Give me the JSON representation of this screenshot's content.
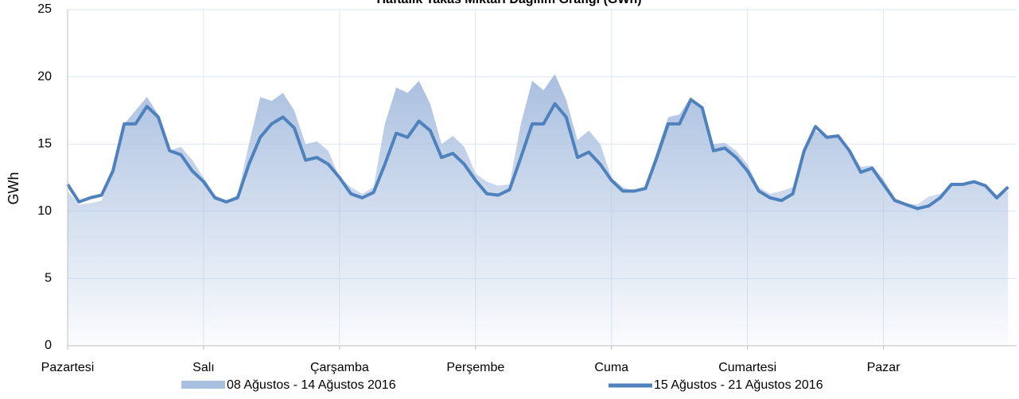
{
  "chart_data": {
    "type": "area_line",
    "title": "Haftalık Takas Miktarı Dağılım Grafiği (GWh)",
    "y_label": "GWh",
    "x": [
      0,
      2,
      4,
      6,
      8,
      10,
      12,
      14,
      16,
      18,
      20,
      22,
      24,
      26,
      28,
      30,
      32,
      34,
      36,
      38,
      40,
      42,
      44,
      46,
      48,
      50,
      52,
      54,
      56,
      58,
      60,
      62,
      64,
      66,
      68,
      70,
      72,
      74,
      76,
      78,
      80,
      82,
      84,
      86,
      88,
      90,
      92,
      94,
      96,
      98,
      100,
      102,
      104,
      106,
      108,
      110,
      112,
      114,
      116,
      118,
      120,
      122,
      124,
      126,
      128,
      130,
      132,
      134,
      136,
      138,
      140,
      142,
      144,
      146,
      148,
      150,
      152,
      154,
      156,
      158,
      160,
      162,
      164,
      166
    ],
    "xlim": [
      0,
      167.5
    ],
    "xticks": [
      {
        "value": 0,
        "label": "Pazartesi"
      },
      {
        "value": 24,
        "label": "Salı"
      },
      {
        "value": 48,
        "label": "Çarşamba"
      },
      {
        "value": 72,
        "label": "Perşembe"
      },
      {
        "value": 96,
        "label": "Cuma"
      },
      {
        "value": 120,
        "label": "Cumartesi"
      },
      {
        "value": 144,
        "label": "Pazar"
      }
    ],
    "ylim": [
      0,
      25
    ],
    "yticks": [
      0,
      5,
      10,
      15,
      20,
      25
    ],
    "grid": true,
    "series": [
      {
        "name": "08 Ağustos - 14 Ağustos 2016",
        "kind": "area",
        "color": "#a9bfdf",
        "values": [
          11.5,
          10.5,
          10.6,
          10.8,
          13,
          16.5,
          17.5,
          18.5,
          17.2,
          14.5,
          14.8,
          13.8,
          12.5,
          11.2,
          10.8,
          11.2,
          15,
          18.5,
          18.2,
          18.8,
          17.5,
          15,
          15.2,
          14.5,
          12.5,
          11.8,
          11.3,
          11.8,
          16.5,
          19.2,
          18.8,
          19.7,
          18,
          15,
          15.6,
          14.8,
          12.8,
          12.2,
          11.9,
          12,
          16.5,
          19.7,
          19,
          20.2,
          18.3,
          15.3,
          16,
          15,
          12.5,
          11.8,
          11.5,
          11.8,
          14.5,
          17,
          17.2,
          18.5,
          17.5,
          15,
          15.1,
          14.5,
          13.5,
          11.8,
          11.3,
          11.5,
          11.8,
          14.5,
          16,
          15.5,
          15.6,
          14.5,
          13.3,
          13.4,
          12.4,
          11,
          10.6,
          10.5,
          11.1,
          11.3,
          12,
          12,
          12.2,
          11.9,
          11.2,
          11.5
        ]
      },
      {
        "name": "15 Ağustos - 21 Ağustos 2016",
        "kind": "line",
        "color": "#4f81bd",
        "values": [
          12,
          10.7,
          11,
          11.2,
          13,
          16.5,
          16.5,
          17.8,
          17,
          14.5,
          14.2,
          13,
          12.2,
          11,
          10.7,
          11,
          13.5,
          15.5,
          16.5,
          17,
          16.2,
          13.8,
          14,
          13.5,
          12.5,
          11.3,
          11,
          11.4,
          13.5,
          15.8,
          15.5,
          16.7,
          16,
          14,
          14.3,
          13.5,
          12.3,
          11.3,
          11.2,
          11.6,
          14,
          16.5,
          16.5,
          18,
          17,
          14,
          14.4,
          13.5,
          12.3,
          11.5,
          11.5,
          11.7,
          14,
          16.5,
          16.5,
          18.3,
          17.7,
          14.5,
          14.7,
          14,
          13,
          11.5,
          11,
          10.8,
          11.3,
          14.5,
          16.3,
          15.5,
          15.6,
          14.5,
          12.9,
          13.2,
          12,
          10.8,
          10.5,
          10.2,
          10.4,
          11,
          12,
          12,
          12.2,
          11.9,
          11,
          11.8
        ]
      }
    ]
  }
}
